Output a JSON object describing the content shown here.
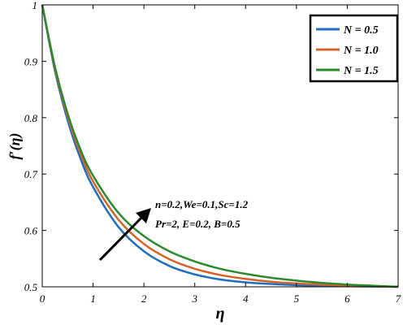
{
  "chart_data": {
    "type": "line",
    "xlabel": "η",
    "ylabel": "f′(η)",
    "xlim": [
      0,
      7
    ],
    "ylim": [
      0.5,
      1.0
    ],
    "xticks": [
      "0",
      "1",
      "2",
      "3",
      "4",
      "5",
      "6",
      "7"
    ],
    "yticks": [
      "0.5",
      "0.6",
      "0.7",
      "0.8",
      "0.9",
      "1"
    ],
    "grid": false,
    "legend_position": "top-right",
    "x": [
      0,
      0.25,
      0.5,
      0.75,
      1,
      1.5,
      2,
      2.5,
      3,
      3.5,
      4,
      4.5,
      5,
      5.5,
      6,
      6.5,
      7
    ],
    "series": [
      {
        "name": "N = 0.5",
        "color": "#1f6fc0",
        "values": [
          1.0,
          0.883,
          0.795,
          0.728,
          0.677,
          0.606,
          0.563,
          0.537,
          0.522,
          0.513,
          0.508,
          0.505,
          0.503,
          0.502,
          0.501,
          0.5005,
          0.5
        ]
      },
      {
        "name": "N = 1.0",
        "color": "#d9622b",
        "values": [
          1.0,
          0.887,
          0.802,
          0.737,
          0.687,
          0.619,
          0.576,
          0.549,
          0.532,
          0.521,
          0.514,
          0.509,
          0.506,
          0.504,
          0.502,
          0.501,
          0.5
        ]
      },
      {
        "name": "N = 1.5",
        "color": "#2b8a2b",
        "values": [
          1.0,
          0.89,
          0.807,
          0.744,
          0.697,
          0.631,
          0.59,
          0.563,
          0.545,
          0.532,
          0.523,
          0.516,
          0.511,
          0.507,
          0.504,
          0.502,
          0.5
        ]
      }
    ],
    "annotations": {
      "line1": "n=0.2,We=0.1,Sc=1.2",
      "line2": "Pr=2,  E=0.2, B=0.5",
      "arrow_direction": "increasing N"
    }
  }
}
